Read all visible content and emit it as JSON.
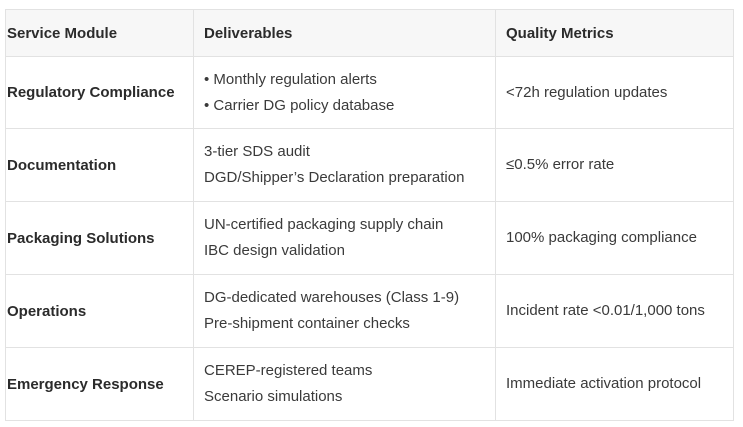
{
  "table": {
    "headers": [
      "Service Module",
      "Deliverables",
      "Quality Metrics"
    ],
    "rows": [
      {
        "module": "Regulatory Compliance",
        "deliverables": [
          "• Monthly regulation alerts",
          "• Carrier DG policy database"
        ],
        "metric": "<72h regulation updates"
      },
      {
        "module": "Documentation",
        "deliverables": [
          "3-tier SDS audit",
          "DGD/Shipper’s Declaration preparation"
        ],
        "metric": "≤0.5% error rate"
      },
      {
        "module": "Packaging Solutions",
        "deliverables": [
          "UN-certified packaging supply chain",
          "IBC design validation"
        ],
        "metric": "100% packaging compliance"
      },
      {
        "module": "Operations",
        "deliverables": [
          "DG-dedicated warehouses (Class 1-9)",
          "Pre-shipment container checks"
        ],
        "metric": "Incident rate <0.01/1,000 tons"
      },
      {
        "module": "Emergency Response",
        "deliverables": [
          "CEREP-registered teams",
          "Scenario simulations"
        ],
        "metric": "Immediate activation protocol"
      }
    ]
  }
}
